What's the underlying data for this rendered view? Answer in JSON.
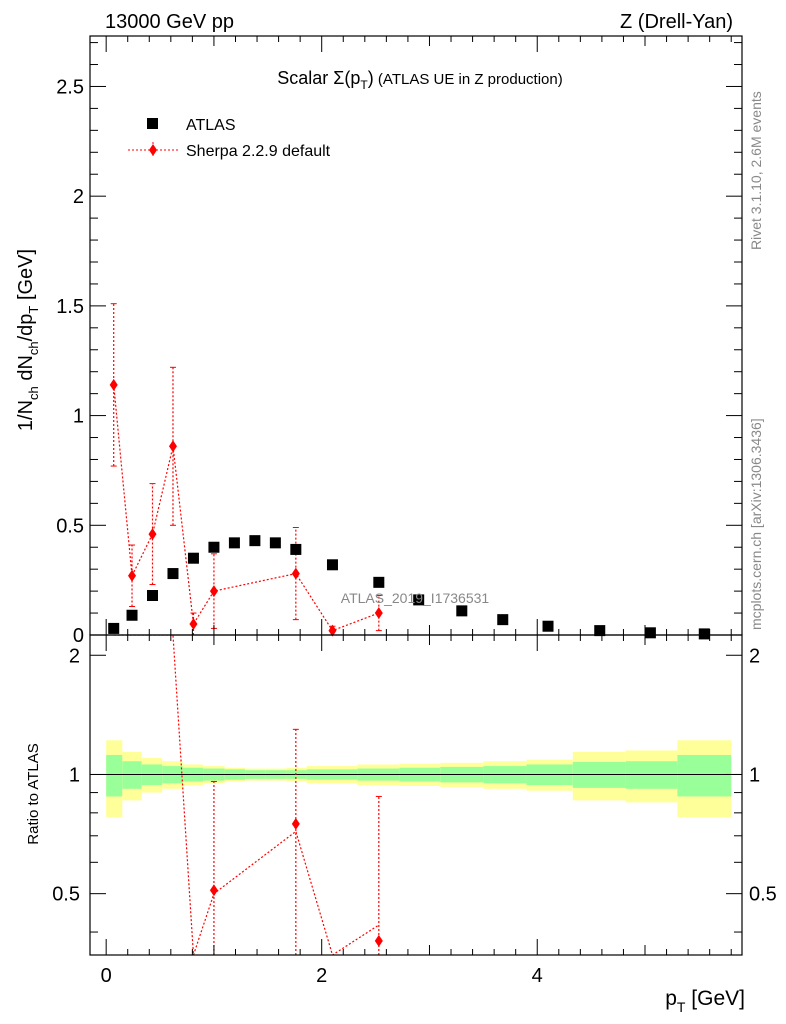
{
  "header": {
    "left": "13000 GeV pp",
    "right": "Z (Drell-Yan)"
  },
  "side_labels": {
    "rivet": "Rivet 3.1.10,  2.6M events",
    "mcplots": "mcplots.cern.ch [arXiv:1306.3436]"
  },
  "chart_data": {
    "type": "scatter",
    "title_main": "Scalar ",
    "title_sigma": "Σ(p",
    "title_sub_t": "T",
    "title_close": ")",
    "title_rest": " (ATLAS UE in Z production)",
    "watermark": "ATLAS_2019_I1736531",
    "ylabel": "1/N_ch dN_ch/dp_T [GeV]",
    "ylabel_parts": {
      "a": "1/N",
      "a_sub": "ch",
      "b": " dN",
      "b_sub": "ch",
      "c": "/dp",
      "c_sub": "T",
      "d": " [GeV]"
    },
    "xlabel_parts": {
      "a": "p",
      "a_sub": "T",
      "b": " [GeV]"
    },
    "ratio_ylabel": "Ratio to ATLAS",
    "xlim": [
      -0.15,
      5.9
    ],
    "ylim_main": [
      0,
      2.73
    ],
    "ylim_ratio": [
      0.35,
      2.25
    ],
    "x_major_ticks": [
      0,
      2,
      4
    ],
    "x_major_labels": [
      "0",
      "2",
      "4"
    ],
    "y_major_ticks_main": [
      0,
      0.5,
      1,
      1.5,
      2,
      2.5
    ],
    "y_major_labels_main": [
      "0",
      "0.5",
      "1",
      "1.5",
      "2",
      "2.5"
    ],
    "y_major_ticks_ratio": [
      0.5,
      1,
      2
    ],
    "y_major_labels_ratio": [
      "0.5",
      "1",
      "2"
    ],
    "legend": [
      {
        "label": "ATLAS",
        "marker": "square",
        "color": "#000000"
      },
      {
        "label": "Sherpa 2.2.9 default",
        "marker": "diamond",
        "color": "#ff0000"
      }
    ],
    "atlas": {
      "x": [
        0.07,
        0.24,
        0.43,
        0.62,
        0.81,
        1.0,
        1.19,
        1.38,
        1.57,
        1.76,
        2.1,
        2.53,
        2.9,
        3.3,
        3.68,
        4.1,
        4.58,
        5.05,
        5.55
      ],
      "y": [
        0.03,
        0.09,
        0.18,
        0.28,
        0.35,
        0.4,
        0.42,
        0.43,
        0.42,
        0.39,
        0.32,
        0.24,
        0.16,
        0.11,
        0.07,
        0.04,
        0.02,
        0.01,
        0.005
      ]
    },
    "sherpa": {
      "x": [
        0.07,
        0.24,
        0.43,
        0.62,
        0.81,
        1.0,
        1.76,
        2.1,
        2.53
      ],
      "y": [
        1.14,
        0.27,
        0.46,
        0.86,
        0.05,
        0.2,
        0.28,
        0.02,
        0.1
      ],
      "yerr": [
        0.37,
        0.14,
        0.23,
        0.36,
        0.05,
        0.17,
        0.21,
        0.02,
        0.08
      ]
    },
    "ratio_sherpa": {
      "x": [
        1.0,
        1.76,
        2.53
      ],
      "y": [
        0.51,
        0.75,
        0.38
      ],
      "yerr": [
        0.45,
        0.55,
        0.5
      ]
    },
    "band_edges": [
      0.0,
      0.15,
      0.33,
      0.52,
      0.71,
      0.9,
      1.1,
      1.29,
      1.48,
      1.67,
      1.86,
      2.33,
      2.72,
      3.1,
      3.5,
      3.9,
      4.33,
      4.82,
      5.3,
      5.8
    ],
    "band_inner": [
      0.12,
      0.08,
      0.06,
      0.05,
      0.04,
      0.035,
      0.03,
      0.025,
      0.025,
      0.025,
      0.03,
      0.035,
      0.04,
      0.045,
      0.05,
      0.06,
      0.075,
      0.08,
      0.12
    ],
    "band_outer": [
      0.22,
      0.14,
      0.1,
      0.08,
      0.06,
      0.05,
      0.04,
      0.035,
      0.035,
      0.04,
      0.05,
      0.06,
      0.065,
      0.07,
      0.08,
      0.09,
      0.14,
      0.15,
      0.22
    ],
    "colors": {
      "inner": "#99ff99",
      "outer": "#ffff99",
      "atlas": "#000000",
      "sherpa": "#ff0000"
    }
  }
}
